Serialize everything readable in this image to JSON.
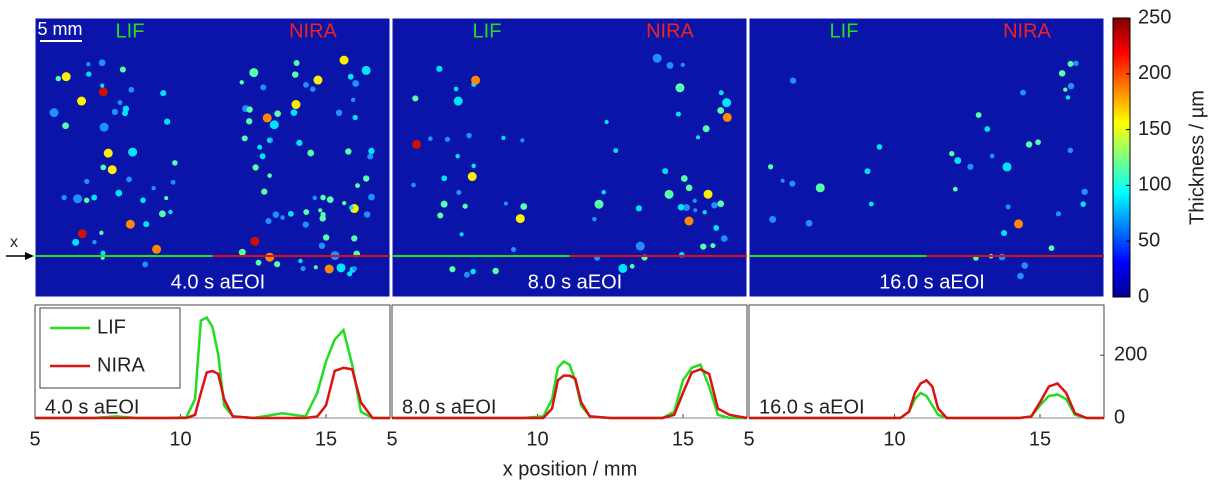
{
  "panels": [
    {
      "left": "LIF",
      "right": "NIRA",
      "time": "4.0 s aEOI",
      "scale_bar": "5 mm",
      "axis_marker": "x"
    },
    {
      "left": "LIF",
      "right": "NIRA",
      "time": "8.0 s aEOI"
    },
    {
      "left": "LIF",
      "right": "NIRA",
      "time": "16.0 s aEOI"
    }
  ],
  "colorbar": {
    "label": "Thickness / µm",
    "lim": [
      0,
      250
    ],
    "ticks": [
      0,
      50,
      100,
      150,
      200,
      250
    ]
  },
  "xlabel": "x position / mm",
  "chart_data": [
    {
      "type": "line",
      "annotation": "4.0 s aEOI",
      "legend": "upper left",
      "x": [
        5,
        6,
        7,
        7.8,
        8.5,
        9.5,
        10.2,
        10.5,
        10.7,
        10.9,
        11.1,
        11.3,
        11.5,
        11.8,
        12.5,
        13.5,
        14.3,
        14.7,
        15.0,
        15.3,
        15.6,
        15.9,
        16.2,
        16.6,
        17.2
      ],
      "series": [
        {
          "name": "LIF",
          "color": "#22dd22",
          "values": [
            0,
            0,
            0,
            5,
            0,
            0,
            2,
            60,
            310,
            320,
            290,
            200,
            40,
            5,
            0,
            15,
            5,
            80,
            180,
            250,
            280,
            170,
            20,
            0,
            0
          ]
        },
        {
          "name": "NIRA",
          "color": "#dd1111",
          "values": [
            0,
            0,
            0,
            0,
            0,
            0,
            0,
            10,
            80,
            145,
            150,
            140,
            60,
            5,
            0,
            0,
            0,
            5,
            40,
            150,
            160,
            155,
            50,
            0,
            0
          ]
        }
      ],
      "xlim": [
        5,
        17.2
      ],
      "ylim": [
        0,
        360
      ],
      "xticks": [
        5,
        10,
        15
      ]
    },
    {
      "type": "line",
      "annotation": "8.0 s aEOI",
      "x": [
        5,
        6,
        7,
        7.8,
        8.5,
        9.5,
        10.2,
        10.5,
        10.7,
        10.9,
        11.1,
        11.3,
        11.5,
        11.8,
        12.5,
        13.5,
        14.3,
        14.7,
        15.0,
        15.3,
        15.6,
        15.9,
        16.2,
        16.6,
        17.2
      ],
      "series": [
        {
          "name": "LIF",
          "color": "#22dd22",
          "values": [
            0,
            0,
            0,
            0,
            0,
            0,
            5,
            60,
            160,
            180,
            170,
            120,
            40,
            5,
            0,
            0,
            0,
            20,
            120,
            160,
            170,
            100,
            10,
            0,
            0
          ]
        },
        {
          "name": "NIRA",
          "color": "#dd1111",
          "values": [
            0,
            0,
            0,
            0,
            0,
            0,
            0,
            30,
            120,
            135,
            135,
            125,
            50,
            5,
            0,
            0,
            0,
            10,
            80,
            145,
            155,
            140,
            30,
            10,
            0
          ]
        }
      ],
      "xlim": [
        5,
        17.2
      ],
      "ylim": [
        0,
        360
      ],
      "xticks": [
        5,
        10,
        15
      ]
    },
    {
      "type": "line",
      "annotation": "16.0 s aEOI",
      "x": [
        5,
        6,
        7,
        7.8,
        8.5,
        9.5,
        10.2,
        10.5,
        10.7,
        10.9,
        11.1,
        11.3,
        11.5,
        11.8,
        12.5,
        13.5,
        14.3,
        14.7,
        15.0,
        15.3,
        15.6,
        15.9,
        16.2,
        16.6,
        17.2
      ],
      "series": [
        {
          "name": "LIF",
          "color": "#22dd22",
          "values": [
            0,
            0,
            0,
            0,
            0,
            0,
            0,
            20,
            60,
            80,
            70,
            40,
            10,
            0,
            0,
            0,
            0,
            5,
            40,
            70,
            75,
            60,
            10,
            0,
            0
          ]
        },
        {
          "name": "NIRA",
          "color": "#dd1111",
          "values": [
            0,
            0,
            0,
            0,
            0,
            0,
            0,
            20,
            80,
            110,
            120,
            100,
            30,
            0,
            0,
            0,
            0,
            5,
            50,
            100,
            110,
            80,
            15,
            0,
            0
          ]
        }
      ],
      "xlim": [
        5,
        17.2
      ],
      "ylim": [
        0,
        360
      ],
      "xticks": [
        5,
        10,
        15
      ],
      "yticks": [
        0,
        200
      ]
    }
  ]
}
